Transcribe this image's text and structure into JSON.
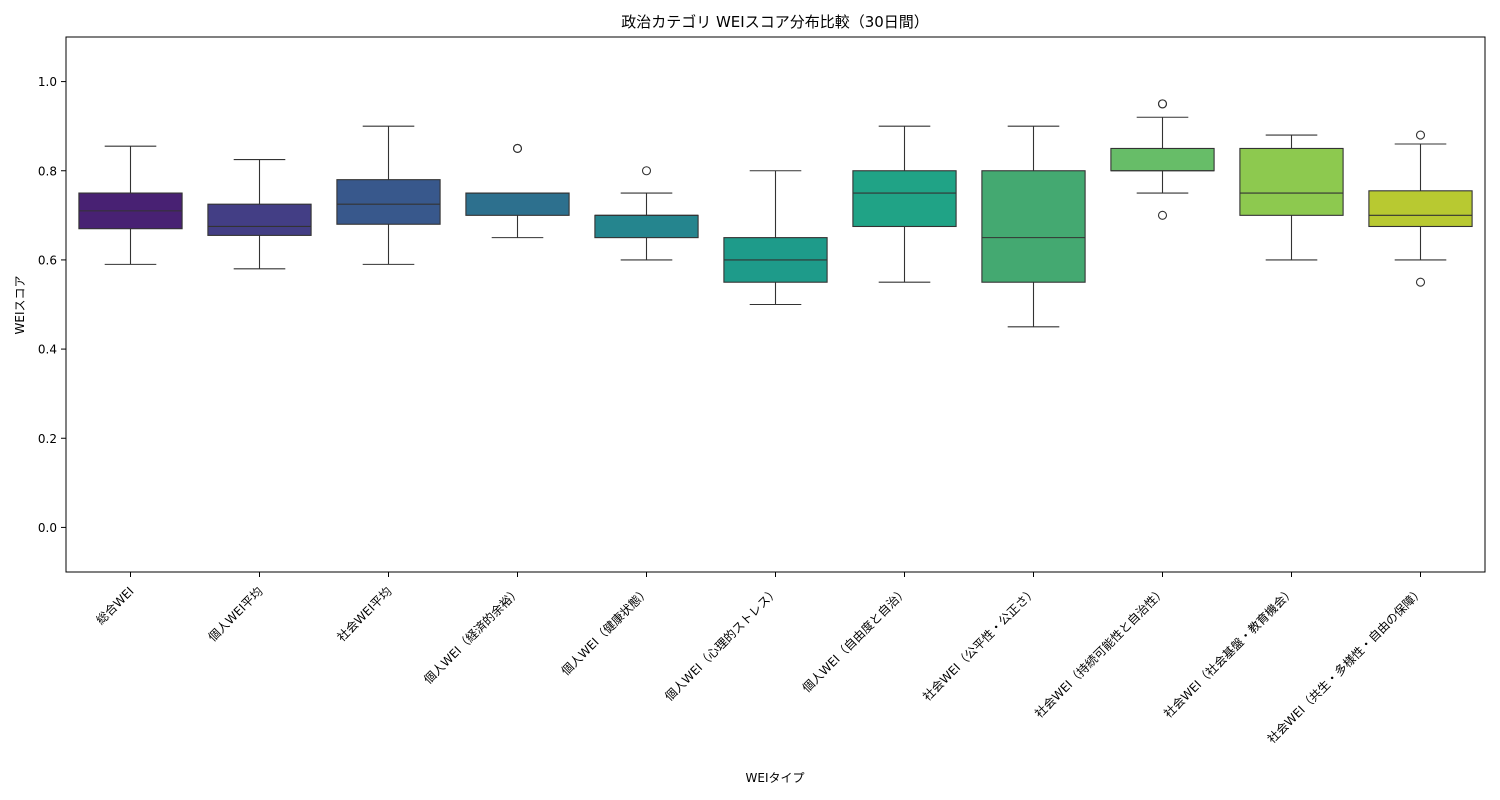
{
  "chart_data": {
    "type": "box",
    "title": "政治カテゴリ WEIスコア分布比較（30日間）",
    "xlabel": "WEIタイプ",
    "ylabel": "WEIスコア",
    "ylim": [
      -0.1,
      1.1
    ],
    "yticks": [
      "0.0",
      "0.2",
      "0.4",
      "0.6",
      "0.8",
      "1.0"
    ],
    "grid": false,
    "categories": [
      "総合WEI",
      "個人WEI平均",
      "社会WEI平均",
      "個人WEI（経済的余裕）",
      "個人WEI（健康状態）",
      "個人WEI（心理的ストレス）",
      "個人WEI（自由度と自治）",
      "社会WEI（公平性・公正さ）",
      "社会WEI（持続可能性と自治性）",
      "社会WEI（社会基盤・教育機会）",
      "社会WEI（共生・多様性・自由の保障）"
    ],
    "boxes": [
      {
        "min": 0.59,
        "q1": 0.67,
        "median": 0.71,
        "q3": 0.75,
        "max": 0.855,
        "outliers": [],
        "color": "#482173"
      },
      {
        "min": 0.58,
        "q1": 0.655,
        "median": 0.675,
        "q3": 0.725,
        "max": 0.825,
        "outliers": [],
        "color": "#433e85"
      },
      {
        "min": 0.59,
        "q1": 0.68,
        "median": 0.725,
        "q3": 0.78,
        "max": 0.9,
        "outliers": [],
        "color": "#38588c"
      },
      {
        "min": 0.65,
        "q1": 0.7,
        "median": 0.75,
        "q3": 0.75,
        "max": 0.75,
        "outliers": [
          0.85,
          0.85
        ],
        "color": "#2d708e"
      },
      {
        "min": 0.6,
        "q1": 0.65,
        "median": 0.7,
        "q3": 0.7,
        "max": 0.75,
        "outliers": [
          0.8
        ],
        "color": "#25858e"
      },
      {
        "min": 0.5,
        "q1": 0.55,
        "median": 0.6,
        "q3": 0.65,
        "max": 0.8,
        "outliers": [],
        "color": "#1e9b8a"
      },
      {
        "min": 0.55,
        "q1": 0.675,
        "median": 0.75,
        "q3": 0.8,
        "max": 0.9,
        "outliers": [],
        "color": "#20a386"
      },
      {
        "min": 0.45,
        "q1": 0.55,
        "median": 0.65,
        "q3": 0.8,
        "max": 0.9,
        "outliers": [],
        "color": "#44a971"
      },
      {
        "min": 0.75,
        "q1": 0.8,
        "median": 0.8,
        "q3": 0.85,
        "max": 0.92,
        "outliers": [
          0.95,
          0.95,
          0.7
        ],
        "color": "#67bd68"
      },
      {
        "min": 0.6,
        "q1": 0.7,
        "median": 0.75,
        "q3": 0.85,
        "max": 0.88,
        "outliers": [],
        "color": "#8dc94f"
      },
      {
        "min": 0.6,
        "q1": 0.675,
        "median": 0.7,
        "q3": 0.755,
        "max": 0.86,
        "outliers": [
          0.88,
          0.55
        ],
        "color": "#b8c931"
      }
    ]
  }
}
